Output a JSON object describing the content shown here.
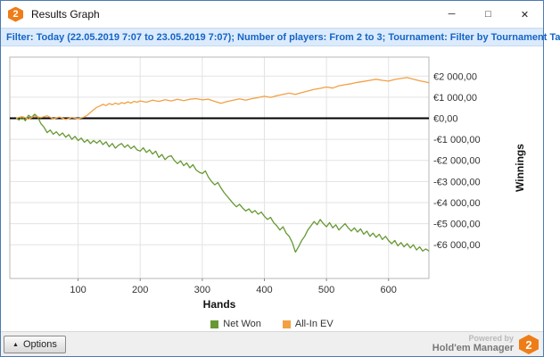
{
  "window": {
    "title": "Results Graph",
    "app_badge": "2",
    "controls": {
      "minimize": "─",
      "maximize": "□",
      "close": "✕"
    }
  },
  "filter_bar": {
    "text": "Filter: Today (22.05.2019 7:07 to 23.05.2019 7:07); Number of players: From 2 to 3; Tournament: Filter by Tournament Ta"
  },
  "chart_data": {
    "type": "line",
    "title": "",
    "xlabel": "Hands",
    "ylabel": "Winnings",
    "xlim": [
      -10,
      665
    ],
    "ylim": [
      -7600,
      2900
    ],
    "grid": true,
    "legend_position": "bottom",
    "zero_line": 0,
    "x_ticks": [
      100,
      200,
      300,
      400,
      500,
      600
    ],
    "y_ticks": [
      {
        "value": 2000,
        "label": "€2 000,00"
      },
      {
        "value": 1000,
        "label": "€1 000,00"
      },
      {
        "value": 0,
        "label": "€0,00"
      },
      {
        "value": -1000,
        "label": "-€1 000,00"
      },
      {
        "value": -2000,
        "label": "-€2 000,00"
      },
      {
        "value": -3000,
        "label": "-€3 000,00"
      },
      {
        "value": -4000,
        "label": "-€4 000,00"
      },
      {
        "value": -5000,
        "label": "-€5 000,00"
      },
      {
        "value": -6000,
        "label": "-€6 000,00"
      }
    ],
    "series": [
      {
        "name": "Net Won",
        "color": "#669933",
        "points": [
          [
            0,
            0
          ],
          [
            5,
            -80
          ],
          [
            10,
            60
          ],
          [
            15,
            -120
          ],
          [
            20,
            140
          ],
          [
            25,
            40
          ],
          [
            30,
            190
          ],
          [
            35,
            60
          ],
          [
            40,
            -250
          ],
          [
            45,
            -420
          ],
          [
            50,
            -680
          ],
          [
            55,
            -560
          ],
          [
            60,
            -760
          ],
          [
            65,
            -640
          ],
          [
            70,
            -820
          ],
          [
            75,
            -700
          ],
          [
            80,
            -900
          ],
          [
            85,
            -780
          ],
          [
            90,
            -1000
          ],
          [
            95,
            -860
          ],
          [
            100,
            -1060
          ],
          [
            105,
            -940
          ],
          [
            110,
            -1140
          ],
          [
            115,
            -1020
          ],
          [
            120,
            -1200
          ],
          [
            125,
            -1060
          ],
          [
            130,
            -1180
          ],
          [
            135,
            -1050
          ],
          [
            140,
            -1250
          ],
          [
            145,
            -1120
          ],
          [
            150,
            -1350
          ],
          [
            155,
            -1200
          ],
          [
            160,
            -1420
          ],
          [
            165,
            -1280
          ],
          [
            170,
            -1200
          ],
          [
            175,
            -1380
          ],
          [
            180,
            -1260
          ],
          [
            185,
            -1440
          ],
          [
            190,
            -1320
          ],
          [
            195,
            -1500
          ],
          [
            200,
            -1560
          ],
          [
            205,
            -1400
          ],
          [
            210,
            -1620
          ],
          [
            215,
            -1500
          ],
          [
            220,
            -1700
          ],
          [
            225,
            -1560
          ],
          [
            230,
            -1860
          ],
          [
            235,
            -1720
          ],
          [
            240,
            -1960
          ],
          [
            245,
            -1820
          ],
          [
            250,
            -1780
          ],
          [
            255,
            -2000
          ],
          [
            260,
            -2150
          ],
          [
            265,
            -2020
          ],
          [
            270,
            -2250
          ],
          [
            275,
            -2120
          ],
          [
            280,
            -2350
          ],
          [
            285,
            -2200
          ],
          [
            290,
            -2450
          ],
          [
            295,
            -2560
          ],
          [
            300,
            -2620
          ],
          [
            305,
            -2500
          ],
          [
            310,
            -2800
          ],
          [
            315,
            -3000
          ],
          [
            320,
            -3160
          ],
          [
            325,
            -3050
          ],
          [
            330,
            -3300
          ],
          [
            335,
            -3520
          ],
          [
            340,
            -3700
          ],
          [
            345,
            -3880
          ],
          [
            350,
            -4050
          ],
          [
            355,
            -4200
          ],
          [
            360,
            -4080
          ],
          [
            365,
            -4260
          ],
          [
            370,
            -4400
          ],
          [
            375,
            -4300
          ],
          [
            380,
            -4480
          ],
          [
            385,
            -4380
          ],
          [
            390,
            -4550
          ],
          [
            395,
            -4450
          ],
          [
            400,
            -4650
          ],
          [
            405,
            -4800
          ],
          [
            410,
            -4700
          ],
          [
            415,
            -4950
          ],
          [
            420,
            -5100
          ],
          [
            425,
            -5300
          ],
          [
            430,
            -5150
          ],
          [
            435,
            -5450
          ],
          [
            440,
            -5600
          ],
          [
            445,
            -5900
          ],
          [
            450,
            -6350
          ],
          [
            455,
            -6100
          ],
          [
            460,
            -5800
          ],
          [
            465,
            -5600
          ],
          [
            470,
            -5300
          ],
          [
            475,
            -5100
          ],
          [
            480,
            -4900
          ],
          [
            485,
            -5050
          ],
          [
            490,
            -4800
          ],
          [
            495,
            -5000
          ],
          [
            500,
            -5150
          ],
          [
            505,
            -4950
          ],
          [
            510,
            -5200
          ],
          [
            515,
            -5050
          ],
          [
            520,
            -5300
          ],
          [
            525,
            -5150
          ],
          [
            530,
            -5000
          ],
          [
            535,
            -5200
          ],
          [
            540,
            -5350
          ],
          [
            545,
            -5200
          ],
          [
            550,
            -5400
          ],
          [
            555,
            -5250
          ],
          [
            560,
            -5500
          ],
          [
            565,
            -5350
          ],
          [
            570,
            -5600
          ],
          [
            575,
            -5450
          ],
          [
            580,
            -5650
          ],
          [
            585,
            -5500
          ],
          [
            590,
            -5750
          ],
          [
            595,
            -5600
          ],
          [
            600,
            -5800
          ],
          [
            605,
            -5950
          ],
          [
            610,
            -5800
          ],
          [
            615,
            -6050
          ],
          [
            620,
            -5900
          ],
          [
            625,
            -6100
          ],
          [
            630,
            -5950
          ],
          [
            635,
            -6150
          ],
          [
            640,
            -6000
          ],
          [
            645,
            -6250
          ],
          [
            650,
            -6100
          ],
          [
            655,
            -6300
          ],
          [
            660,
            -6200
          ],
          [
            665,
            -6300
          ]
        ]
      },
      {
        "name": "All-In EV",
        "color": "#f2a044",
        "points": [
          [
            0,
            0
          ],
          [
            10,
            80
          ],
          [
            20,
            -40
          ],
          [
            30,
            100
          ],
          [
            40,
            30
          ],
          [
            50,
            120
          ],
          [
            60,
            -30
          ],
          [
            70,
            60
          ],
          [
            80,
            -60
          ],
          [
            90,
            40
          ],
          [
            100,
            -20
          ],
          [
            110,
            60
          ],
          [
            115,
            150
          ],
          [
            120,
            280
          ],
          [
            125,
            400
          ],
          [
            130,
            520
          ],
          [
            135,
            580
          ],
          [
            140,
            660
          ],
          [
            145,
            600
          ],
          [
            150,
            700
          ],
          [
            155,
            640
          ],
          [
            160,
            720
          ],
          [
            165,
            660
          ],
          [
            170,
            740
          ],
          [
            175,
            700
          ],
          [
            180,
            780
          ],
          [
            185,
            720
          ],
          [
            190,
            800
          ],
          [
            195,
            760
          ],
          [
            200,
            820
          ],
          [
            210,
            760
          ],
          [
            220,
            860
          ],
          [
            230,
            800
          ],
          [
            240,
            880
          ],
          [
            250,
            820
          ],
          [
            260,
            900
          ],
          [
            270,
            840
          ],
          [
            280,
            900
          ],
          [
            290,
            930
          ],
          [
            300,
            870
          ],
          [
            310,
            900
          ],
          [
            320,
            800
          ],
          [
            330,
            710
          ],
          [
            340,
            790
          ],
          [
            350,
            860
          ],
          [
            360,
            920
          ],
          [
            370,
            860
          ],
          [
            380,
            930
          ],
          [
            390,
            980
          ],
          [
            400,
            1040
          ],
          [
            410,
            990
          ],
          [
            420,
            1070
          ],
          [
            430,
            1130
          ],
          [
            440,
            1190
          ],
          [
            450,
            1130
          ],
          [
            460,
            1220
          ],
          [
            470,
            1290
          ],
          [
            480,
            1370
          ],
          [
            490,
            1420
          ],
          [
            500,
            1480
          ],
          [
            510,
            1430
          ],
          [
            520,
            1540
          ],
          [
            530,
            1590
          ],
          [
            540,
            1640
          ],
          [
            550,
            1700
          ],
          [
            560,
            1750
          ],
          [
            570,
            1800
          ],
          [
            580,
            1850
          ],
          [
            590,
            1800
          ],
          [
            600,
            1760
          ],
          [
            610,
            1840
          ],
          [
            620,
            1890
          ],
          [
            630,
            1930
          ],
          [
            640,
            1850
          ],
          [
            650,
            1780
          ],
          [
            660,
            1720
          ],
          [
            665,
            1680
          ]
        ]
      }
    ]
  },
  "legend": {
    "items": [
      {
        "label": "Net Won",
        "color": "#669933"
      },
      {
        "label": "All-In EV",
        "color": "#f2a044"
      }
    ]
  },
  "footer": {
    "options_label": "Options",
    "powered_by": "Powered by",
    "brand": "Hold'em Manager",
    "brand_badge": "2",
    "brand_color": "#ee7d18"
  }
}
